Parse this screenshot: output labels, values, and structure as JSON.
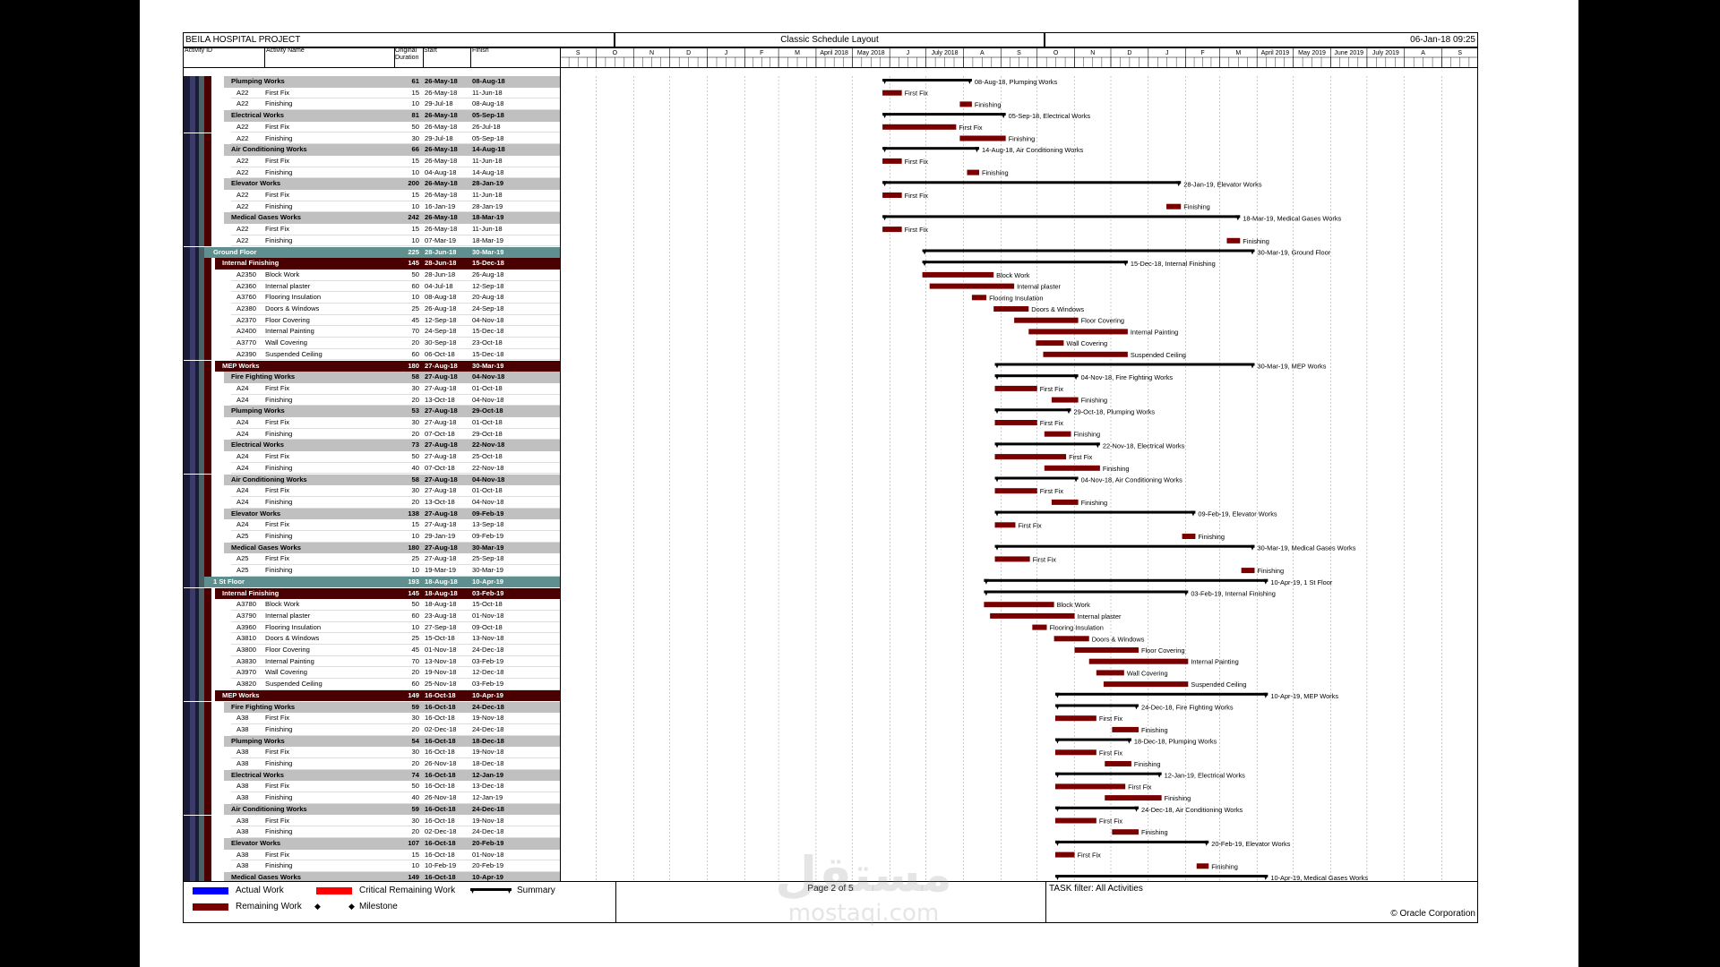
{
  "header": {
    "project": "BEILA HOSPITAL PROJECT",
    "layout": "Classic Schedule Layout",
    "date": "06-Jan-18 09:25"
  },
  "columns": {
    "id": "Activity ID",
    "name": "Activity Name",
    "duration": "Original Duration",
    "start": "Start",
    "finish": "Finish"
  },
  "timescale": {
    "months": [
      "S",
      "O",
      "N",
      "D",
      "J",
      "F",
      "M",
      "April 2018",
      "May 2018",
      "J",
      "July 2018",
      "A",
      "S",
      "O",
      "N",
      "D",
      "J",
      "F",
      "M",
      "April 2019",
      "May 2019",
      "June 2019",
      "July 2019",
      "A",
      "S"
    ]
  },
  "rows": [
    {
      "level": "g2",
      "id": "",
      "name": "Plumping Works",
      "dur": "61",
      "start": "26-May-18",
      "finish": "08-Aug-18",
      "label": "08-Aug-18, Plumping Works"
    },
    {
      "level": "a",
      "id": "A22",
      "name": "First Fix",
      "dur": "15",
      "start": "26-May-18",
      "finish": "11-Jun-18",
      "label": "First Fix"
    },
    {
      "level": "a",
      "id": "A22",
      "name": "Finishing",
      "dur": "10",
      "start": "29-Jul-18",
      "finish": "08-Aug-18",
      "label": "Finishing"
    },
    {
      "level": "g2",
      "id": "",
      "name": "Electrical Works",
      "dur": "81",
      "start": "26-May-18",
      "finish": "05-Sep-18",
      "label": "05-Sep-18, Electrical Works"
    },
    {
      "level": "a",
      "id": "A22",
      "name": "First Fix",
      "dur": "50",
      "start": "26-May-18",
      "finish": "26-Jul-18",
      "label": "First Fix"
    },
    {
      "level": "a",
      "id": "A22",
      "name": "Finishing",
      "dur": "30",
      "start": "29-Jul-18",
      "finish": "05-Sep-18",
      "label": "Finishing"
    },
    {
      "level": "g2",
      "id": "",
      "name": "Air Conditioning Works",
      "dur": "66",
      "start": "26-May-18",
      "finish": "14-Aug-18",
      "label": "14-Aug-18, Air Conditioning Works"
    },
    {
      "level": "a",
      "id": "A22",
      "name": "First Fix",
      "dur": "15",
      "start": "26-May-18",
      "finish": "11-Jun-18",
      "label": "First Fix"
    },
    {
      "level": "a",
      "id": "A22",
      "name": "Finishing",
      "dur": "10",
      "start": "04-Aug-18",
      "finish": "14-Aug-18",
      "label": "Finishing"
    },
    {
      "level": "g2",
      "id": "",
      "name": "Elevator Works",
      "dur": "200",
      "start": "26-May-18",
      "finish": "28-Jan-19",
      "label": "28-Jan-19, Elevator Works"
    },
    {
      "level": "a",
      "id": "A22",
      "name": "First Fix",
      "dur": "15",
      "start": "26-May-18",
      "finish": "11-Jun-18",
      "label": "First Fix"
    },
    {
      "level": "a",
      "id": "A22",
      "name": "Finishing",
      "dur": "10",
      "start": "16-Jan-19",
      "finish": "28-Jan-19",
      "label": "Finishing"
    },
    {
      "level": "g2",
      "id": "",
      "name": "Medical Gases Works",
      "dur": "242",
      "start": "26-May-18",
      "finish": "18-Mar-19",
      "label": "18-Mar-19, Medical Gases Works"
    },
    {
      "level": "a",
      "id": "A22",
      "name": "First Fix",
      "dur": "15",
      "start": "26-May-18",
      "finish": "11-Jun-18",
      "label": "First Fix"
    },
    {
      "level": "a",
      "id": "A22",
      "name": "Finishing",
      "dur": "10",
      "start": "07-Mar-19",
      "finish": "18-Mar-19",
      "label": "Finishing"
    },
    {
      "level": "g0",
      "id": "",
      "name": "Ground Floor",
      "dur": "225",
      "start": "28-Jun-18",
      "finish": "30-Mar-19",
      "label": "30-Mar-19, Ground Floor"
    },
    {
      "level": "g1",
      "id": "",
      "name": "Internal Finishing",
      "dur": "145",
      "start": "28-Jun-18",
      "finish": "15-Dec-18",
      "label": "15-Dec-18, Internal Finishing"
    },
    {
      "level": "a",
      "id": "A2350",
      "name": "Block Work",
      "dur": "50",
      "start": "28-Jun-18",
      "finish": "26-Aug-18",
      "label": "Block Work"
    },
    {
      "level": "a",
      "id": "A2360",
      "name": "Internal plaster",
      "dur": "60",
      "start": "04-Jul-18",
      "finish": "12-Sep-18",
      "label": "Internal plaster"
    },
    {
      "level": "a",
      "id": "A3760",
      "name": "Flooring Insulation",
      "dur": "10",
      "start": "08-Aug-18",
      "finish": "20-Aug-18",
      "label": "Flooring Insulation"
    },
    {
      "level": "a",
      "id": "A2380",
      "name": "Doors & Windows",
      "dur": "25",
      "start": "26-Aug-18",
      "finish": "24-Sep-18",
      "label": "Doors & Windows"
    },
    {
      "level": "a",
      "id": "A2370",
      "name": "Floor Covering",
      "dur": "45",
      "start": "12-Sep-18",
      "finish": "04-Nov-18",
      "label": "Floor Covering"
    },
    {
      "level": "a",
      "id": "A2400",
      "name": "Internal Painting",
      "dur": "70",
      "start": "24-Sep-18",
      "finish": "15-Dec-18",
      "label": "Internal Painting"
    },
    {
      "level": "a",
      "id": "A3770",
      "name": "Wall Covering",
      "dur": "20",
      "start": "30-Sep-18",
      "finish": "23-Oct-18",
      "label": "Wall Covering"
    },
    {
      "level": "a",
      "id": "A2390",
      "name": "Suspended Ceiling",
      "dur": "60",
      "start": "06-Oct-18",
      "finish": "15-Dec-18",
      "label": "Suspended Ceiling"
    },
    {
      "level": "g1",
      "id": "",
      "name": "MEP Works",
      "dur": "180",
      "start": "27-Aug-18",
      "finish": "30-Mar-19",
      "label": "30-Mar-19, MEP Works"
    },
    {
      "level": "g2",
      "id": "",
      "name": "Fire Fighting Works",
      "dur": "58",
      "start": "27-Aug-18",
      "finish": "04-Nov-18",
      "label": "04-Nov-18, Fire Fighting Works"
    },
    {
      "level": "a",
      "id": "A24",
      "name": "First Fix",
      "dur": "30",
      "start": "27-Aug-18",
      "finish": "01-Oct-18",
      "label": "First Fix"
    },
    {
      "level": "a",
      "id": "A24",
      "name": "Finishing",
      "dur": "20",
      "start": "13-Oct-18",
      "finish": "04-Nov-18",
      "label": "Finishing"
    },
    {
      "level": "g2",
      "id": "",
      "name": "Plumping Works",
      "dur": "53",
      "start": "27-Aug-18",
      "finish": "29-Oct-18",
      "label": "29-Oct-18, Plumping Works"
    },
    {
      "level": "a",
      "id": "A24",
      "name": "First Fix",
      "dur": "30",
      "start": "27-Aug-18",
      "finish": "01-Oct-18",
      "label": "First Fix"
    },
    {
      "level": "a",
      "id": "A24",
      "name": "Finishing",
      "dur": "20",
      "start": "07-Oct-18",
      "finish": "29-Oct-18",
      "label": "Finishing"
    },
    {
      "level": "g2",
      "id": "",
      "name": "Electrical Works",
      "dur": "73",
      "start": "27-Aug-18",
      "finish": "22-Nov-18",
      "label": "22-Nov-18, Electrical Works"
    },
    {
      "level": "a",
      "id": "A24",
      "name": "First Fix",
      "dur": "50",
      "start": "27-Aug-18",
      "finish": "25-Oct-18",
      "label": "First Fix"
    },
    {
      "level": "a",
      "id": "A24",
      "name": "Finishing",
      "dur": "40",
      "start": "07-Oct-18",
      "finish": "22-Nov-18",
      "label": "Finishing"
    },
    {
      "level": "g2",
      "id": "",
      "name": "Air Conditioning Works",
      "dur": "58",
      "start": "27-Aug-18",
      "finish": "04-Nov-18",
      "label": "04-Nov-18, Air Conditioning Works"
    },
    {
      "level": "a",
      "id": "A24",
      "name": "First Fix",
      "dur": "30",
      "start": "27-Aug-18",
      "finish": "01-Oct-18",
      "label": "First Fix"
    },
    {
      "level": "a",
      "id": "A24",
      "name": "Finishing",
      "dur": "20",
      "start": "13-Oct-18",
      "finish": "04-Nov-18",
      "label": "Finishing"
    },
    {
      "level": "g2",
      "id": "",
      "name": "Elevator Works",
      "dur": "138",
      "start": "27-Aug-18",
      "finish": "09-Feb-19",
      "label": "09-Feb-19, Elevator Works"
    },
    {
      "level": "a",
      "id": "A24",
      "name": "First Fix",
      "dur": "15",
      "start": "27-Aug-18",
      "finish": "13-Sep-18",
      "label": "First Fix"
    },
    {
      "level": "a",
      "id": "A25",
      "name": "Finishing",
      "dur": "10",
      "start": "29-Jan-19",
      "finish": "09-Feb-19",
      "label": "Finishing"
    },
    {
      "level": "g2",
      "id": "",
      "name": "Medical Gases Works",
      "dur": "180",
      "start": "27-Aug-18",
      "finish": "30-Mar-19",
      "label": "30-Mar-19, Medical Gases Works"
    },
    {
      "level": "a",
      "id": "A25",
      "name": "First Fix",
      "dur": "25",
      "start": "27-Aug-18",
      "finish": "25-Sep-18",
      "label": "First Fix"
    },
    {
      "level": "a",
      "id": "A25",
      "name": "Finishing",
      "dur": "10",
      "start": "19-Mar-19",
      "finish": "30-Mar-19",
      "label": "Finishing"
    },
    {
      "level": "g0",
      "id": "",
      "name": "1 St Floor",
      "dur": "193",
      "start": "18-Aug-18",
      "finish": "10-Apr-19",
      "label": "10-Apr-19, 1 St Floor"
    },
    {
      "level": "g1",
      "id": "",
      "name": "Internal Finishing",
      "dur": "145",
      "start": "18-Aug-18",
      "finish": "03-Feb-19",
      "label": "03-Feb-19, Internal Finishing"
    },
    {
      "level": "a",
      "id": "A3780",
      "name": "Block Work",
      "dur": "50",
      "start": "18-Aug-18",
      "finish": "15-Oct-18",
      "label": "Block Work"
    },
    {
      "level": "a",
      "id": "A3790",
      "name": "Internal plaster",
      "dur": "60",
      "start": "23-Aug-18",
      "finish": "01-Nov-18",
      "label": "Internal plaster"
    },
    {
      "level": "a",
      "id": "A3960",
      "name": "Flooring Insulation",
      "dur": "10",
      "start": "27-Sep-18",
      "finish": "09-Oct-18",
      "label": "Flooring Insulation"
    },
    {
      "level": "a",
      "id": "A3810",
      "name": "Doors & Windows",
      "dur": "25",
      "start": "15-Oct-18",
      "finish": "13-Nov-18",
      "label": "Doors & Windows"
    },
    {
      "level": "a",
      "id": "A3800",
      "name": "Floor Covering",
      "dur": "45",
      "start": "01-Nov-18",
      "finish": "24-Dec-18",
      "label": "Floor Covering"
    },
    {
      "level": "a",
      "id": "A3830",
      "name": "Internal Painting",
      "dur": "70",
      "start": "13-Nov-18",
      "finish": "03-Feb-19",
      "label": "Internal Painting"
    },
    {
      "level": "a",
      "id": "A3970",
      "name": "Wall Covering",
      "dur": "20",
      "start": "19-Nov-18",
      "finish": "12-Dec-18",
      "label": "Wall Covering"
    },
    {
      "level": "a",
      "id": "A3820",
      "name": "Suspended Ceiling",
      "dur": "60",
      "start": "25-Nov-18",
      "finish": "03-Feb-19",
      "label": "Suspended Ceiling"
    },
    {
      "level": "g1",
      "id": "",
      "name": "MEP Works",
      "dur": "149",
      "start": "16-Oct-18",
      "finish": "10-Apr-19",
      "label": "10-Apr-19, MEP Works"
    },
    {
      "level": "g2",
      "id": "",
      "name": "Fire Fighting Works",
      "dur": "59",
      "start": "16-Oct-18",
      "finish": "24-Dec-18",
      "label": "24-Dec-18, Fire Fighting Works"
    },
    {
      "level": "a",
      "id": "A38",
      "name": "First Fix",
      "dur": "30",
      "start": "16-Oct-18",
      "finish": "19-Nov-18",
      "label": "First Fix"
    },
    {
      "level": "a",
      "id": "A38",
      "name": "Finishing",
      "dur": "20",
      "start": "02-Dec-18",
      "finish": "24-Dec-18",
      "label": "Finishing"
    },
    {
      "level": "g2",
      "id": "",
      "name": "Plumping Works",
      "dur": "54",
      "start": "16-Oct-18",
      "finish": "18-Dec-18",
      "label": "18-Dec-18, Plumping Works"
    },
    {
      "level": "a",
      "id": "A38",
      "name": "First Fix",
      "dur": "30",
      "start": "16-Oct-18",
      "finish": "19-Nov-18",
      "label": "First Fix"
    },
    {
      "level": "a",
      "id": "A38",
      "name": "Finishing",
      "dur": "20",
      "start": "26-Nov-18",
      "finish": "18-Dec-18",
      "label": "Finishing"
    },
    {
      "level": "g2",
      "id": "",
      "name": "Electrical Works",
      "dur": "74",
      "start": "16-Oct-18",
      "finish": "12-Jan-19",
      "label": "12-Jan-19, Electrical Works"
    },
    {
      "level": "a",
      "id": "A38",
      "name": "First Fix",
      "dur": "50",
      "start": "16-Oct-18",
      "finish": "13-Dec-18",
      "label": "First Fix"
    },
    {
      "level": "a",
      "id": "A38",
      "name": "Finishing",
      "dur": "40",
      "start": "26-Nov-18",
      "finish": "12-Jan-19",
      "label": "Finishing"
    },
    {
      "level": "g2",
      "id": "",
      "name": "Air Conditioning Works",
      "dur": "59",
      "start": "16-Oct-18",
      "finish": "24-Dec-18",
      "label": "24-Dec-18, Air Conditioning Works"
    },
    {
      "level": "a",
      "id": "A38",
      "name": "First Fix",
      "dur": "30",
      "start": "16-Oct-18",
      "finish": "19-Nov-18",
      "label": "First Fix"
    },
    {
      "level": "a",
      "id": "A38",
      "name": "Finishing",
      "dur": "20",
      "start": "02-Dec-18",
      "finish": "24-Dec-18",
      "label": "Finishing"
    },
    {
      "level": "g2",
      "id": "",
      "name": "Elevator Works",
      "dur": "107",
      "start": "16-Oct-18",
      "finish": "20-Feb-19",
      "label": "20-Feb-19, Elevator Works"
    },
    {
      "level": "a",
      "id": "A38",
      "name": "First Fix",
      "dur": "15",
      "start": "16-Oct-18",
      "finish": "01-Nov-18",
      "label": "First Fix"
    },
    {
      "level": "a",
      "id": "A38",
      "name": "Finishing",
      "dur": "10",
      "start": "10-Feb-19",
      "finish": "20-Feb-19",
      "label": "Finishing"
    },
    {
      "level": "g2",
      "id": "",
      "name": "Medical Gases Works",
      "dur": "149",
      "start": "16-Oct-18",
      "finish": "10-Apr-19",
      "label": "10-Apr-19, Medical Gases Works"
    }
  ],
  "legend": {
    "actual": "Actual Work",
    "critical": "Critical Remaining Work",
    "summary": "Summary",
    "remaining": "Remaining Work",
    "milestone": "Milestone"
  },
  "footer": {
    "page": "Page 2 of 5",
    "filter": "TASK filter: All Activities",
    "copyright": "© Oracle Corporation"
  },
  "watermark": {
    "text_ar": "مستقل",
    "text_en": "mostaqi.com"
  },
  "colors": {
    "bar": "#7a0000",
    "g0": "#5f8f8f",
    "g1": "#4a0000",
    "g2": "#c0c0c0",
    "actual": "#0000ff",
    "critical": "#ff0000"
  }
}
